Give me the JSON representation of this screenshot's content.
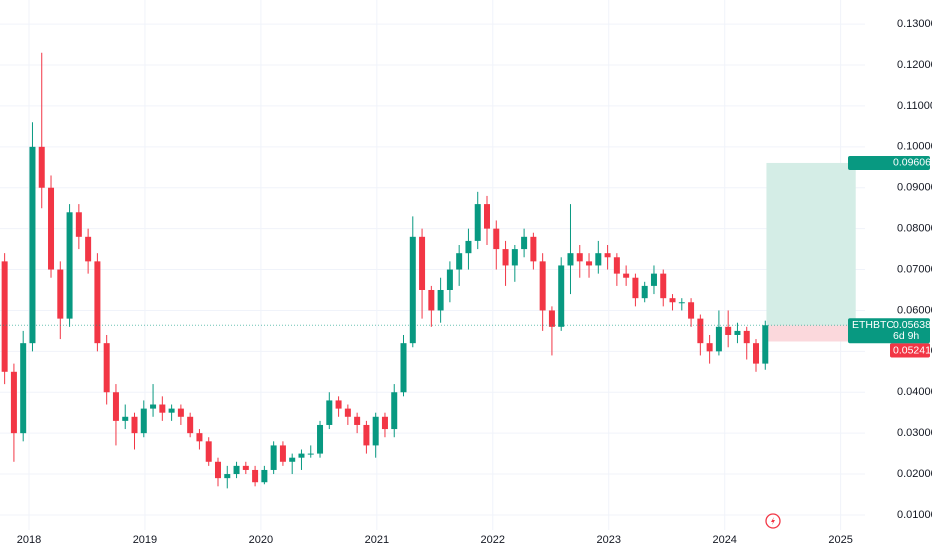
{
  "chart_data": {
    "type": "candlestick",
    "symbol": "ETHBTC",
    "xlim": [
      2017.75,
      2025.21
    ],
    "xticks": [
      2018,
      2019,
      2020,
      2021,
      2022,
      2023,
      2024,
      2025
    ],
    "ylim": [
      0.00632,
      0.1359
    ],
    "yticks": [
      {
        "value": 0.01,
        "label": "0.01000"
      },
      {
        "value": 0.02,
        "label": "0.02000"
      },
      {
        "value": 0.03,
        "label": "0.03000"
      },
      {
        "value": 0.04,
        "label": "0.04000"
      },
      {
        "value": 0.05,
        "label": "0.05000"
      },
      {
        "value": 0.06,
        "label": "0.06000"
      },
      {
        "value": 0.07,
        "label": "0.07000"
      },
      {
        "value": 0.08,
        "label": "0.08000"
      },
      {
        "value": 0.09,
        "label": "0.09000"
      },
      {
        "value": 0.1,
        "label": "0.10000"
      },
      {
        "value": 0.11,
        "label": "0.11000"
      },
      {
        "value": 0.12,
        "label": "0.12000"
      },
      {
        "value": 0.13,
        "label": "0.13000"
      }
    ],
    "grid": true,
    "up_color": "#089981",
    "down_color": "#f23645",
    "x": [
      2017.79,
      2017.87,
      2017.95,
      2018.03,
      2018.11,
      2018.19,
      2018.27,
      2018.35,
      2018.43,
      2018.51,
      2018.59,
      2018.67,
      2018.75,
      2018.83,
      2018.91,
      2018.99,
      2019.07,
      2019.15,
      2019.23,
      2019.31,
      2019.39,
      2019.47,
      2019.55,
      2019.63,
      2019.71,
      2019.79,
      2019.87,
      2019.95,
      2020.03,
      2020.11,
      2020.19,
      2020.27,
      2020.35,
      2020.43,
      2020.51,
      2020.59,
      2020.67,
      2020.75,
      2020.83,
      2020.91,
      2020.99,
      2021.07,
      2021.15,
      2021.23,
      2021.31,
      2021.39,
      2021.47,
      2021.55,
      2021.63,
      2021.71,
      2021.79,
      2021.87,
      2021.95,
      2022.03,
      2022.11,
      2022.19,
      2022.27,
      2022.35,
      2022.43,
      2022.51,
      2022.59,
      2022.67,
      2022.75,
      2022.83,
      2022.91,
      2022.99,
      2023.07,
      2023.15,
      2023.23,
      2023.31,
      2023.39,
      2023.47,
      2023.55,
      2023.63,
      2023.71,
      2023.79,
      2023.87,
      2023.95,
      2024.03,
      2024.11,
      2024.19,
      2024.27,
      2024.35
    ],
    "open": [
      0.072,
      0.045,
      0.03,
      0.052,
      0.1,
      0.09,
      0.07,
      0.058,
      0.084,
      0.078,
      0.072,
      0.052,
      0.04,
      0.033,
      0.034,
      0.03,
      0.036,
      0.037,
      0.035,
      0.036,
      0.034,
      0.03,
      0.028,
      0.023,
      0.019,
      0.02,
      0.022,
      0.021,
      0.018,
      0.021,
      0.027,
      0.023,
      0.024,
      0.025,
      0.025,
      0.032,
      0.038,
      0.036,
      0.034,
      0.032,
      0.027,
      0.034,
      0.031,
      0.04,
      0.052,
      0.078,
      0.065,
      0.06,
      0.065,
      0.07,
      0.074,
      0.077,
      0.086,
      0.08,
      0.075,
      0.071,
      0.075,
      0.078,
      0.072,
      0.06,
      0.056,
      0.071,
      0.074,
      0.072,
      0.071,
      0.074,
      0.073,
      0.069,
      0.068,
      0.063,
      0.066,
      0.069,
      0.063,
      0.062,
      0.062,
      0.058,
      0.052,
      0.05,
      0.056,
      0.054,
      0.055,
      0.052,
      0.047
    ],
    "high": [
      0.074,
      0.047,
      0.055,
      0.106,
      0.123,
      0.093,
      0.072,
      0.086,
      0.086,
      0.08,
      0.074,
      0.054,
      0.042,
      0.037,
      0.035,
      0.038,
      0.042,
      0.039,
      0.037,
      0.037,
      0.035,
      0.031,
      0.029,
      0.024,
      0.022,
      0.023,
      0.023,
      0.022,
      0.022,
      0.028,
      0.028,
      0.025,
      0.026,
      0.027,
      0.033,
      0.04,
      0.039,
      0.037,
      0.035,
      0.033,
      0.035,
      0.035,
      0.042,
      0.054,
      0.083,
      0.08,
      0.066,
      0.068,
      0.072,
      0.076,
      0.08,
      0.089,
      0.088,
      0.082,
      0.077,
      0.076,
      0.08,
      0.079,
      0.074,
      0.061,
      0.073,
      0.086,
      0.076,
      0.074,
      0.077,
      0.076,
      0.074,
      0.071,
      0.069,
      0.067,
      0.071,
      0.07,
      0.064,
      0.063,
      0.063,
      0.059,
      0.054,
      0.06,
      0.06,
      0.057,
      0.056,
      0.053,
      0.0575
    ],
    "low": [
      0.042,
      0.023,
      0.028,
      0.05,
      0.085,
      0.068,
      0.053,
      0.056,
      0.075,
      0.069,
      0.05,
      0.037,
      0.027,
      0.031,
      0.026,
      0.029,
      0.034,
      0.033,
      0.033,
      0.032,
      0.029,
      0.026,
      0.022,
      0.017,
      0.0165,
      0.019,
      0.02,
      0.017,
      0.0175,
      0.02,
      0.022,
      0.02,
      0.021,
      0.024,
      0.024,
      0.031,
      0.034,
      0.032,
      0.03,
      0.025,
      0.024,
      0.029,
      0.029,
      0.039,
      0.051,
      0.058,
      0.056,
      0.057,
      0.062,
      0.066,
      0.07,
      0.075,
      0.076,
      0.07,
      0.066,
      0.067,
      0.073,
      0.07,
      0.055,
      0.049,
      0.055,
      0.064,
      0.068,
      0.068,
      0.069,
      0.07,
      0.066,
      0.066,
      0.061,
      0.062,
      0.064,
      0.061,
      0.06,
      0.06,
      0.056,
      0.049,
      0.047,
      0.049,
      0.051,
      0.052,
      0.048,
      0.045,
      0.0455
    ],
    "close": [
      0.045,
      0.03,
      0.052,
      0.1,
      0.09,
      0.07,
      0.058,
      0.084,
      0.078,
      0.072,
      0.052,
      0.04,
      0.033,
      0.034,
      0.03,
      0.036,
      0.037,
      0.035,
      0.036,
      0.034,
      0.03,
      0.028,
      0.023,
      0.019,
      0.02,
      0.022,
      0.021,
      0.018,
      0.021,
      0.027,
      0.023,
      0.024,
      0.025,
      0.025,
      0.032,
      0.038,
      0.036,
      0.034,
      0.032,
      0.027,
      0.034,
      0.031,
      0.04,
      0.052,
      0.078,
      0.065,
      0.06,
      0.065,
      0.07,
      0.074,
      0.077,
      0.086,
      0.08,
      0.075,
      0.071,
      0.075,
      0.078,
      0.072,
      0.06,
      0.056,
      0.071,
      0.074,
      0.072,
      0.071,
      0.074,
      0.073,
      0.069,
      0.068,
      0.063,
      0.066,
      0.069,
      0.063,
      0.062,
      0.062,
      0.058,
      0.052,
      0.05,
      0.056,
      0.054,
      0.055,
      0.052,
      0.047,
      0.05638
    ],
    "last_price": 0.05638,
    "countdown": "6d 9h",
    "position": {
      "x_start": 2024.36,
      "x_end": 2025.13,
      "target": 0.09606,
      "entry": 0.05635,
      "stop": 0.05241,
      "profit_color": "#d4ede6",
      "loss_color": "#fbd8dc"
    }
  }
}
